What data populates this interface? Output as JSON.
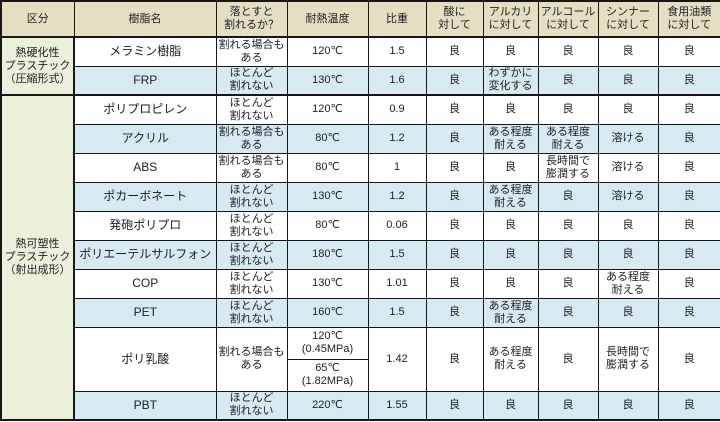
{
  "colors": {
    "header_bg": "#e4dfc2",
    "group_bg": "#eaf0d9",
    "row_blue": "#d7eaf1",
    "row_white": "#ffffff",
    "border": "#161616",
    "text": "#1d1d26"
  },
  "table": {
    "headers": [
      "区分",
      "樹脂名",
      "落とすと\n割れるか？",
      "耐熱温度",
      "比重",
      "酸に\n対して",
      "アルカリ\nに対して",
      "アルコール\nに対して",
      "シンナー\nに対して",
      "食用油類\nに対して"
    ],
    "groups": [
      {
        "label": "熱硬化性\nプラスチック\n（圧縮形式）",
        "rows": [
          {
            "name": "メラミン樹脂",
            "break_when_dropped": "割れる場合も\nある",
            "heat_temp": "120℃",
            "specific_gravity": "1.5",
            "acid": "良",
            "alkali": "良",
            "alcohol": "良",
            "thinner": "良",
            "oil": "良"
          },
          {
            "name": "FRP",
            "break_when_dropped": "ほとんど\n割れない",
            "heat_temp": "130℃",
            "specific_gravity": "1.6",
            "acid": "良",
            "alkali": "わずかに\n変化する",
            "alcohol": "良",
            "thinner": "良",
            "oil": "良"
          }
        ]
      },
      {
        "label": "熱可塑性\nプラスチック\n（射出成形）",
        "rows": [
          {
            "name": "ポリプロピレン",
            "break_when_dropped": "ほとんど\n割れない",
            "heat_temp": "120℃",
            "specific_gravity": "0.9",
            "acid": "良",
            "alkali": "良",
            "alcohol": "良",
            "thinner": "良",
            "oil": "良"
          },
          {
            "name": "アクリル",
            "break_when_dropped": "割れる場合も\nある",
            "heat_temp": "80℃",
            "specific_gravity": "1.2",
            "acid": "良",
            "alkali": "ある程度\n耐える",
            "alcohol": "ある程度\n耐える",
            "thinner": "溶ける",
            "oil": "良"
          },
          {
            "name": "ABS",
            "break_when_dropped": "割れる場合も\nある",
            "heat_temp": "80℃",
            "specific_gravity": "1",
            "acid": "良",
            "alkali": "良",
            "alcohol": "長時間で\n膨潤する",
            "thinner": "溶ける",
            "oil": "良"
          },
          {
            "name": "ポカーボネート",
            "break_when_dropped": "ほとんど\n割れない",
            "heat_temp": "130℃",
            "specific_gravity": "1.2",
            "acid": "良",
            "alkali": "ある程度\n耐える",
            "alcohol": "良",
            "thinner": "溶ける",
            "oil": "良"
          },
          {
            "name": "発砲ポリプロ",
            "break_when_dropped": "ほとんど\n割れない",
            "heat_temp": "80℃",
            "specific_gravity": "0.06",
            "acid": "良",
            "alkali": "良",
            "alcohol": "良",
            "thinner": "良",
            "oil": "良"
          },
          {
            "name": "ポリエーテルサルフォン",
            "break_when_dropped": "ほとんど\n割れない",
            "heat_temp": "180℃",
            "specific_gravity": "1.5",
            "acid": "良",
            "alkali": "良",
            "alcohol": "良",
            "thinner": "良",
            "oil": "良"
          },
          {
            "name": "COP",
            "break_when_dropped": "ほとんど\n割れない",
            "heat_temp": "130℃",
            "specific_gravity": "1.01",
            "acid": "良",
            "alkali": "良",
            "alcohol": "良",
            "thinner": "ある程度\n耐える",
            "oil": "良"
          },
          {
            "name": "PET",
            "break_when_dropped": "ほとんど\n割れない",
            "heat_temp": "160℃",
            "specific_gravity": "1.5",
            "acid": "良",
            "alkali": "ある程度\n耐える",
            "alcohol": "良",
            "thinner": "良",
            "oil": "良"
          },
          {
            "name": "ポリ乳酸",
            "break_when_dropped": "割れる場合も\nある",
            "heat_temp_split": [
              "120℃\n(0.45MPa)",
              "65℃\n(1.82MPa)"
            ],
            "specific_gravity": "1.42",
            "acid": "良",
            "alkali": "ある程度\n耐える",
            "alcohol": "良",
            "thinner": "長時間で\n膨潤する",
            "oil": "良"
          },
          {
            "name": "PBT",
            "break_when_dropped": "ほとんど\n割れない",
            "heat_temp": "220℃",
            "specific_gravity": "1.55",
            "acid": "良",
            "alkali": "良",
            "alcohol": "良",
            "thinner": "良",
            "oil": "良"
          }
        ]
      }
    ]
  }
}
